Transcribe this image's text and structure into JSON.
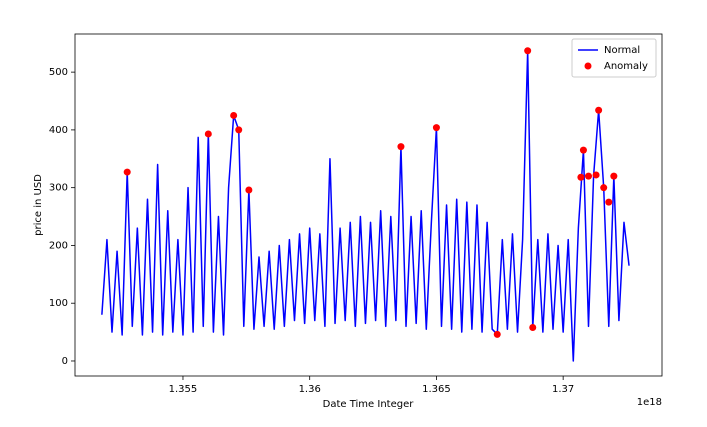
{
  "chart_data": {
    "type": "line_scatter",
    "xlabel": "Date Time Integer",
    "ylabel": "price in USD",
    "x_offset_label": "1e18",
    "xlim": [
      1.35074,
      1.3739
    ],
    "ylim": [
      -26,
      566
    ],
    "xticks": [
      1.355,
      1.36,
      1.365,
      1.37
    ],
    "yticks": [
      0,
      100,
      200,
      300,
      400,
      500
    ],
    "grid": false,
    "legend": "upper right",
    "series": [
      {
        "name": "Normal",
        "kind": "line",
        "color": "#0000ff",
        "x": [
          1.3518,
          1.352,
          1.3522,
          1.3524,
          1.3526,
          1.3528,
          1.353,
          1.3532,
          1.3534,
          1.3536,
          1.3538,
          1.354,
          1.3542,
          1.3544,
          1.3546,
          1.3548,
          1.355,
          1.3552,
          1.3554,
          1.3556,
          1.3558,
          1.356,
          1.3562,
          1.3564,
          1.3566,
          1.3568,
          1.357,
          1.3572,
          1.3574,
          1.3576,
          1.3578,
          1.358,
          1.3582,
          1.3584,
          1.3586,
          1.3588,
          1.359,
          1.3592,
          1.3594,
          1.3596,
          1.3598,
          1.36,
          1.3602,
          1.3604,
          1.3606,
          1.3608,
          1.361,
          1.3612,
          1.3614,
          1.3616,
          1.3618,
          1.362,
          1.3622,
          1.3624,
          1.3626,
          1.3628,
          1.363,
          1.3632,
          1.3634,
          1.3636,
          1.3638,
          1.364,
          1.3642,
          1.3644,
          1.3646,
          1.3648,
          1.365,
          1.3652,
          1.3654,
          1.3656,
          1.3658,
          1.366,
          1.3662,
          1.3664,
          1.3666,
          1.3668,
          1.367,
          1.3672,
          1.3674,
          1.3676,
          1.3678,
          1.368,
          1.3682,
          1.3684,
          1.3686,
          1.3688,
          1.369,
          1.3692,
          1.3694,
          1.3696,
          1.3698,
          1.37,
          1.3702,
          1.3704,
          1.3706,
          1.3708,
          1.371,
          1.3712,
          1.3714,
          1.3716,
          1.3718,
          1.372,
          1.3722,
          1.3724,
          1.3726
        ],
        "values": [
          80,
          210,
          50,
          190,
          45,
          327,
          60,
          230,
          45,
          280,
          50,
          340,
          45,
          260,
          50,
          210,
          45,
          300,
          50,
          387,
          60,
          393,
          50,
          250,
          45,
          300,
          425,
          400,
          60,
          296,
          55,
          180,
          60,
          190,
          55,
          200,
          60,
          210,
          70,
          220,
          65,
          230,
          70,
          220,
          60,
          350,
          65,
          230,
          70,
          240,
          60,
          250,
          65,
          240,
          70,
          260,
          60,
          250,
          70,
          371,
          60,
          250,
          65,
          260,
          55,
          240,
          404,
          60,
          270,
          55,
          280,
          50,
          275,
          55,
          270,
          50,
          240,
          55,
          46,
          210,
          55,
          220,
          50,
          210,
          537,
          58,
          210,
          50,
          220,
          55,
          200,
          50,
          210,
          0,
          230,
          365,
          60,
          320,
          434,
          300,
          60,
          320,
          70,
          240,
          165
        ]
      },
      {
        "name": "Anomaly",
        "kind": "scatter",
        "color": "#ff0000",
        "x": [
          1.3528,
          1.356,
          1.357,
          1.3572,
          1.3576,
          1.3636,
          1.365,
          1.3674,
          1.3686,
          1.3688,
          1.3707,
          1.3708,
          1.371,
          1.3713,
          1.3714,
          1.3716,
          1.3718,
          1.372
        ],
        "values": [
          327,
          393,
          425,
          400,
          296,
          371,
          404,
          46,
          537,
          58,
          318,
          365,
          320,
          322,
          434,
          300,
          275,
          320
        ]
      }
    ]
  }
}
